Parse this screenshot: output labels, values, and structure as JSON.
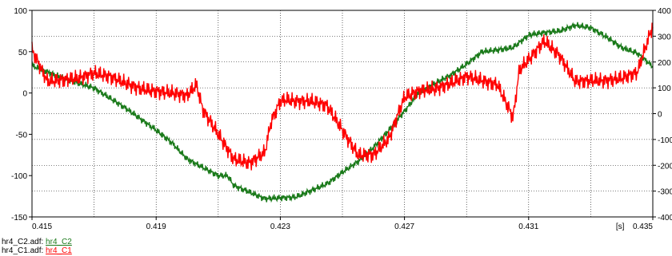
{
  "chart_data": {
    "type": "line",
    "x_unit_label": "[s]",
    "xlim": [
      0.415,
      0.435
    ],
    "x_ticks": [
      0.415,
      0.419,
      0.423,
      0.427,
      0.431,
      0.435
    ],
    "x_tick_labels": [
      "0.415",
      "0.419",
      "0.423",
      "0.427",
      "0.431",
      "0.435"
    ],
    "ylim_left": [
      -150,
      100
    ],
    "y_ticks_left": [
      100,
      50,
      0,
      -50,
      -100,
      -150
    ],
    "y_tick_labels_left": [
      "100",
      "50",
      "0",
      "-50",
      "-100",
      "-150"
    ],
    "ylim_right": [
      -400,
      400
    ],
    "y_ticks_right": [
      400,
      300,
      200,
      100,
      0,
      -100,
      -200,
      -300,
      -400
    ],
    "y_tick_labels_right": [
      "400",
      "300",
      "200",
      "100",
      "0",
      "-100",
      "-200",
      "-300",
      "-400"
    ],
    "grid": true,
    "series": [
      {
        "name": "hr4_C2",
        "file": "hr4_C2.adf:",
        "color": "#1a7a1a",
        "axis": "left",
        "points": [
          [
            0.415,
            33
          ],
          [
            0.416,
            18
          ],
          [
            0.417,
            6
          ],
          [
            0.418,
            -18
          ],
          [
            0.419,
            -45
          ],
          [
            0.4195,
            -60
          ],
          [
            0.42,
            -80
          ],
          [
            0.4205,
            -90
          ],
          [
            0.421,
            -100
          ],
          [
            0.4213,
            -100
          ],
          [
            0.4215,
            -112
          ],
          [
            0.422,
            -120
          ],
          [
            0.4225,
            -128
          ],
          [
            0.423,
            -127
          ],
          [
            0.4235,
            -126
          ],
          [
            0.424,
            -118
          ],
          [
            0.4245,
            -110
          ],
          [
            0.425,
            -96
          ],
          [
            0.4255,
            -83
          ],
          [
            0.426,
            -66
          ],
          [
            0.4265,
            -45
          ],
          [
            0.427,
            -22
          ],
          [
            0.4275,
            2
          ],
          [
            0.428,
            12
          ],
          [
            0.4285,
            22
          ],
          [
            0.429,
            35
          ],
          [
            0.4295,
            50
          ],
          [
            0.43,
            52
          ],
          [
            0.4305,
            55
          ],
          [
            0.431,
            70
          ],
          [
            0.4315,
            73
          ],
          [
            0.432,
            75
          ],
          [
            0.4325,
            82
          ],
          [
            0.433,
            79
          ],
          [
            0.4335,
            68
          ],
          [
            0.434,
            55
          ],
          [
            0.4345,
            48
          ],
          [
            0.435,
            32
          ]
        ],
        "noise_amplitude": 5
      },
      {
        "name": "hr4_C1",
        "file": "hr4_C1.adf:",
        "color": "#ff0000",
        "axis": "left",
        "points": [
          [
            0.415,
            52
          ],
          [
            0.4155,
            14
          ],
          [
            0.416,
            16
          ],
          [
            0.4165,
            18
          ],
          [
            0.417,
            24
          ],
          [
            0.4175,
            20
          ],
          [
            0.418,
            12
          ],
          [
            0.4185,
            5
          ],
          [
            0.419,
            2
          ],
          [
            0.4195,
            0
          ],
          [
            0.42,
            -3
          ],
          [
            0.4203,
            10
          ],
          [
            0.4205,
            -20
          ],
          [
            0.421,
            -50
          ],
          [
            0.4215,
            -80
          ],
          [
            0.422,
            -85
          ],
          [
            0.4225,
            -72
          ],
          [
            0.4227,
            -35
          ],
          [
            0.423,
            -10
          ],
          [
            0.4232,
            -8
          ],
          [
            0.4235,
            -10
          ],
          [
            0.424,
            -10
          ],
          [
            0.4245,
            -15
          ],
          [
            0.425,
            -45
          ],
          [
            0.4255,
            -75
          ],
          [
            0.426,
            -75
          ],
          [
            0.4265,
            -55
          ],
          [
            0.427,
            -5
          ],
          [
            0.4275,
            3
          ],
          [
            0.428,
            5
          ],
          [
            0.4285,
            12
          ],
          [
            0.429,
            20
          ],
          [
            0.4295,
            15
          ],
          [
            0.43,
            10
          ],
          [
            0.4305,
            -30
          ],
          [
            0.4307,
            28
          ],
          [
            0.431,
            40
          ],
          [
            0.4315,
            63
          ],
          [
            0.432,
            45
          ],
          [
            0.4325,
            14
          ],
          [
            0.433,
            15
          ],
          [
            0.4335,
            15
          ],
          [
            0.434,
            18
          ],
          [
            0.4345,
            25
          ],
          [
            0.435,
            82
          ]
        ],
        "noise_amplitude": 12
      }
    ]
  },
  "legend": [
    {
      "file": "hr4_C2.adf:",
      "signal": "hr4_C2"
    },
    {
      "file": "hr4_C1.adf:",
      "signal": "hr4_C1"
    }
  ]
}
